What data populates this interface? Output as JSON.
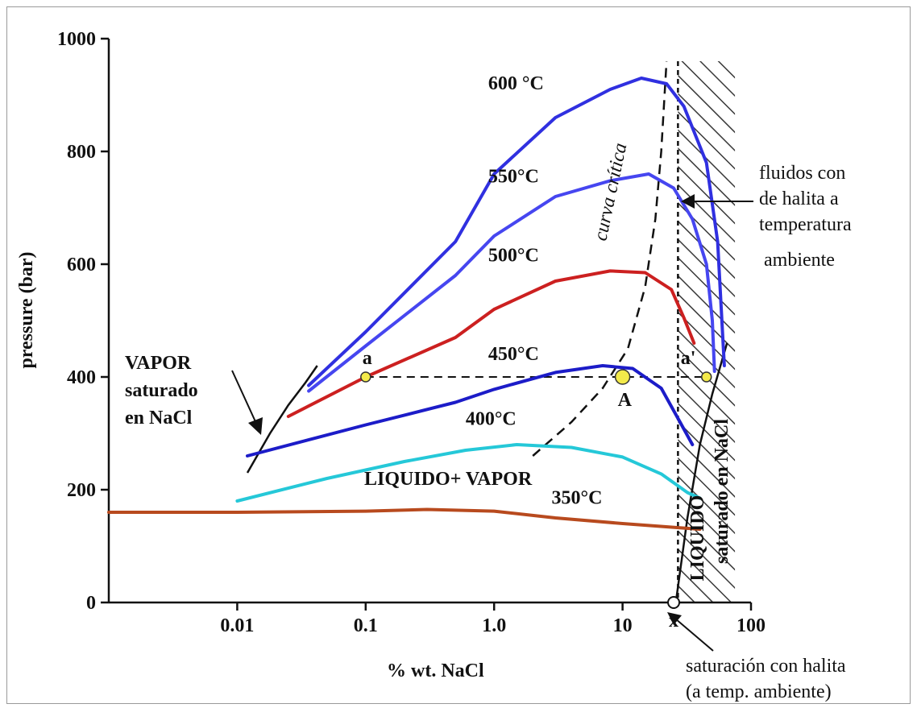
{
  "chart_data": {
    "type": "line",
    "xscale": "log",
    "xlabel": "% wt. NaCl",
    "ylabel": "pressure (bar)",
    "xlim": [
      0.001,
      100
    ],
    "ylim": [
      0,
      1000
    ],
    "xticks": [
      {
        "value": 0.01,
        "label": "0.01"
      },
      {
        "value": 0.1,
        "label": "0.1"
      },
      {
        "value": 1,
        "label": "1.0"
      },
      {
        "value": 10,
        "label": "10"
      },
      {
        "value": 100,
        "label": "100"
      }
    ],
    "yticks": [
      {
        "value": 0,
        "label": "0"
      },
      {
        "value": 200,
        "label": "200"
      },
      {
        "value": 400,
        "label": "400"
      },
      {
        "value": 600,
        "label": "600"
      },
      {
        "value": 800,
        "label": "800"
      },
      {
        "value": 1000,
        "label": "1000"
      }
    ],
    "series": [
      {
        "name": "600 °C",
        "color": "#3030e0",
        "label_at": [
          0.9,
          910
        ],
        "points": [
          [
            0.036,
            385
          ],
          [
            0.1,
            480
          ],
          [
            0.5,
            640
          ],
          [
            1,
            760
          ],
          [
            3,
            860
          ],
          [
            8,
            910
          ],
          [
            14,
            930
          ],
          [
            22,
            920
          ],
          [
            30,
            880
          ],
          [
            45,
            780
          ],
          [
            55,
            640
          ],
          [
            60,
            480
          ],
          [
            62,
            420
          ]
        ]
      },
      {
        "name": "550°C",
        "color": "#4646f0",
        "label_at": [
          0.9,
          745
        ],
        "points": [
          [
            0.036,
            375
          ],
          [
            0.1,
            455
          ],
          [
            0.5,
            580
          ],
          [
            1,
            650
          ],
          [
            3,
            720
          ],
          [
            8,
            748
          ],
          [
            16,
            760
          ],
          [
            25,
            735
          ],
          [
            35,
            680
          ],
          [
            45,
            600
          ],
          [
            50,
            500
          ],
          [
            52,
            410
          ]
        ]
      },
      {
        "name": "500°C",
        "color": "#cc2020",
        "label_at": [
          0.9,
          605
        ],
        "points": [
          [
            0.025,
            330
          ],
          [
            0.1,
            400
          ],
          [
            0.5,
            470
          ],
          [
            1,
            520
          ],
          [
            3,
            570
          ],
          [
            8,
            588
          ],
          [
            15,
            585
          ],
          [
            24,
            555
          ],
          [
            30,
            505
          ],
          [
            36,
            460
          ]
        ]
      },
      {
        "name": "450°C",
        "color": "#1c1cc8",
        "label_at": [
          0.9,
          430
        ],
        "points": [
          [
            0.012,
            260
          ],
          [
            0.1,
            315
          ],
          [
            0.5,
            355
          ],
          [
            1,
            378
          ],
          [
            3,
            408
          ],
          [
            7,
            420
          ],
          [
            12,
            415
          ],
          [
            20,
            380
          ],
          [
            28,
            320
          ],
          [
            35,
            280
          ]
        ]
      },
      {
        "name": "400°C",
        "color": "#25c8d8",
        "label_at": [
          0.6,
          315
        ],
        "points": [
          [
            0.01,
            180
          ],
          [
            0.05,
            220
          ],
          [
            0.2,
            250
          ],
          [
            0.6,
            270
          ],
          [
            1.5,
            280
          ],
          [
            4,
            275
          ],
          [
            10,
            258
          ],
          [
            20,
            228
          ],
          [
            32,
            195
          ],
          [
            40,
            185
          ]
        ]
      },
      {
        "name": "350°C",
        "color": "#b84a1e",
        "label_at": [
          2.8,
          175
        ],
        "points": [
          [
            0.001,
            160
          ],
          [
            0.01,
            160
          ],
          [
            0.1,
            162
          ],
          [
            0.3,
            165
          ],
          [
            1,
            162
          ],
          [
            3,
            150
          ],
          [
            10,
            140
          ],
          [
            30,
            132
          ],
          [
            40,
            130
          ]
        ]
      }
    ],
    "critical_curve": {
      "label": "curva crítica",
      "points": [
        [
          2,
          260
        ],
        [
          4,
          320
        ],
        [
          7,
          380
        ],
        [
          11,
          450
        ],
        [
          15,
          560
        ],
        [
          18,
          680
        ],
        [
          20,
          800
        ],
        [
          22,
          960
        ]
      ]
    },
    "vapor_boundary": {
      "points": [
        [
          0.012,
          230
        ],
        [
          0.018,
          300
        ],
        [
          0.025,
          350
        ],
        [
          0.034,
          390
        ],
        [
          0.042,
          420
        ]
      ]
    },
    "liquid_boundary": {
      "points": [
        [
          26,
          0
        ],
        [
          32,
          150
        ],
        [
          40,
          280
        ],
        [
          50,
          370
        ],
        [
          65,
          460
        ]
      ]
    },
    "isobar_400": {
      "from": [
        0.1,
        400
      ],
      "to": [
        45,
        400
      ]
    },
    "hatched_region": {
      "x_start": 27,
      "x_end": 75,
      "y_top": 960
    },
    "points": [
      {
        "label": "a",
        "x": 0.1,
        "y": 400
      },
      {
        "label": "A",
        "x": 10,
        "y": 400
      },
      {
        "label": "a'",
        "x": 45,
        "y": 400
      },
      {
        "label": "x",
        "x": 25,
        "y": 0
      }
    ],
    "annotations": {
      "vapor": [
        "VAPOR",
        "saturado",
        "en NaCl"
      ],
      "liquid_vapor": "LIQUIDO+ VAPOR",
      "liquid": [
        "LIQUIDO",
        "saturado en NaCl"
      ],
      "fluids": [
        "fluidos con",
        "de halita a",
        "temperatura",
        "ambiente"
      ],
      "saturation": [
        "saturación con halita",
        "(a temp. ambiente)"
      ]
    }
  }
}
